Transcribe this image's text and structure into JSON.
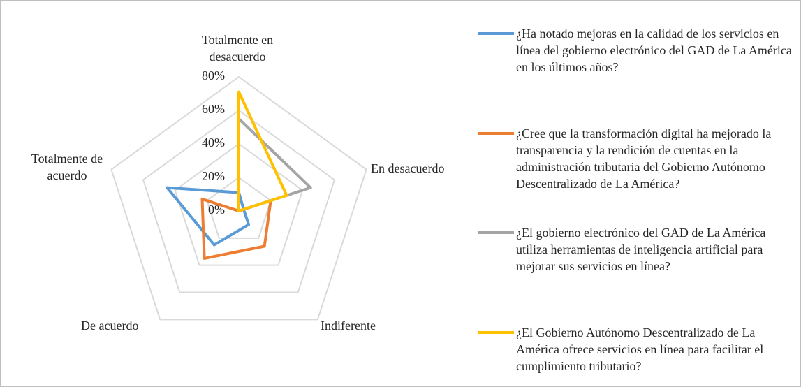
{
  "chart_data": {
    "type": "radar",
    "categories": [
      "Totalmente en desacuerdo",
      "En desacuerdo",
      "Indiferente",
      "De acuerdo",
      "Totalmente de acuerdo"
    ],
    "series": [
      {
        "name": "¿Ha notado mejoras en la calidad de los servicios en línea del gobierno electrónico del GAD de La América en los últimos años?",
        "color": "#5b9bd5",
        "values": [
          11,
          3,
          10,
          25,
          45
        ]
      },
      {
        "name": "¿Cree que la transformación digital ha mejorado la transparencia y la rendición de cuentas en la administración tributaria del Gobierno Autónomo Descentralizado de La América?",
        "color": "#ed7d31",
        "values": [
          0,
          20,
          26,
          35,
          23
        ]
      },
      {
        "name": "¿El gobierno electrónico del GAD de La América utiliza herramientas de inteligencia artificial para mejorar sus servicios en línea?",
        "color": "#a5a5a5",
        "values": [
          55,
          45,
          0,
          0,
          0
        ]
      },
      {
        "name": "¿El Gobierno Autónomo Descentralizado de La América ofrece servicios en línea para facilitar el cumplimiento tributario?",
        "color": "#ffc000",
        "values": [
          71,
          30,
          0,
          0,
          0
        ]
      }
    ],
    "ylim": [
      0,
      80
    ],
    "yticks": [
      {
        "value": 0,
        "label": "0%"
      },
      {
        "value": 20,
        "label": "20%"
      },
      {
        "value": 40,
        "label": "40%"
      },
      {
        "value": 60,
        "label": "60%"
      },
      {
        "value": 80,
        "label": "80%"
      }
    ],
    "grid": true,
    "legend": "right"
  }
}
